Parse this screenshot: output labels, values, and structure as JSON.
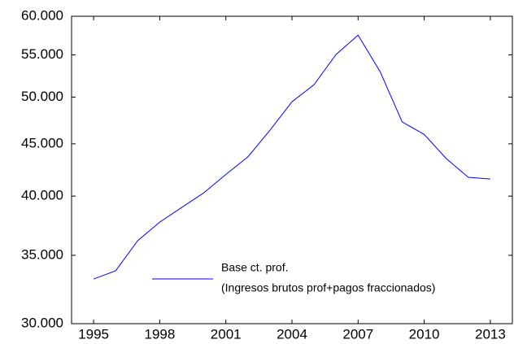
{
  "chart_data": {
    "type": "line",
    "log_y": true,
    "x": [
      1995,
      1996,
      1997,
      1998,
      1999,
      2000,
      2001,
      2002,
      2003,
      2004,
      2005,
      2006,
      2007,
      2008,
      2009,
      2010,
      2011,
      2012,
      2013
    ],
    "series": [
      {
        "name": "Base ct. prof.",
        "description": "(Ingresos brutos prof+pagos fraccionados)",
        "color": "#0000ff",
        "values": [
          33180,
          33800,
          36170,
          37720,
          38990,
          40300,
          42000,
          43700,
          46400,
          49480,
          51420,
          55050,
          57500,
          52960,
          47280,
          45970,
          43530,
          41730,
          41570
        ]
      }
    ],
    "xlim": [
      1994,
      2014
    ],
    "xticks": [
      1995,
      1998,
      2001,
      2004,
      2007,
      2010,
      2013
    ],
    "ylim": [
      30000,
      60000
    ],
    "yticks": [
      {
        "value": 30000,
        "label": "30.000"
      },
      {
        "value": 35000,
        "label": "35.000"
      },
      {
        "value": 40000,
        "label": "40.000"
      },
      {
        "value": 45000,
        "label": "45.000"
      },
      {
        "value": 50000,
        "label": "50.000"
      },
      {
        "value": 55000,
        "label": "55.000"
      },
      {
        "value": 60000,
        "label": "60.000"
      }
    ]
  }
}
